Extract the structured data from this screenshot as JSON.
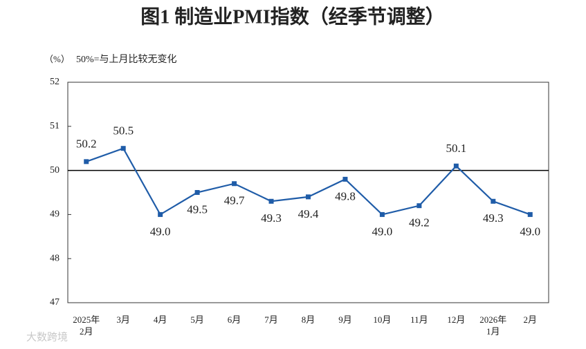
{
  "chart_data": {
    "type": "line",
    "title": "图1  制造业PMI指数（经季节调整）",
    "y_unit": "（%）",
    "annotation": "50%=与上月比较无变化",
    "watermark": "大数跨境",
    "categories": [
      "2025年\n2月",
      "3月",
      "4月",
      "5月",
      "6月",
      "7月",
      "8月",
      "9月",
      "10月",
      "11月",
      "12月",
      "2026年\n1月",
      "2月"
    ],
    "series": [
      {
        "name": "制造业PMI",
        "color": "#1f5ca8",
        "values": [
          50.2,
          50.5,
          49.0,
          49.5,
          49.7,
          49.3,
          49.4,
          49.8,
          49.0,
          49.2,
          50.1,
          49.3,
          49.0
        ],
        "value_labels": [
          "50.2",
          "50.5",
          "49.0",
          "49.5",
          "49.7",
          "49.3",
          "49.4",
          "49.8",
          "49.0",
          "49.2",
          "50.1",
          "49.3",
          "49.0"
        ]
      }
    ],
    "ylim": [
      47,
      52
    ],
    "yticks": [
      47,
      48,
      49,
      50,
      51,
      52
    ],
    "reference_line": 50
  }
}
